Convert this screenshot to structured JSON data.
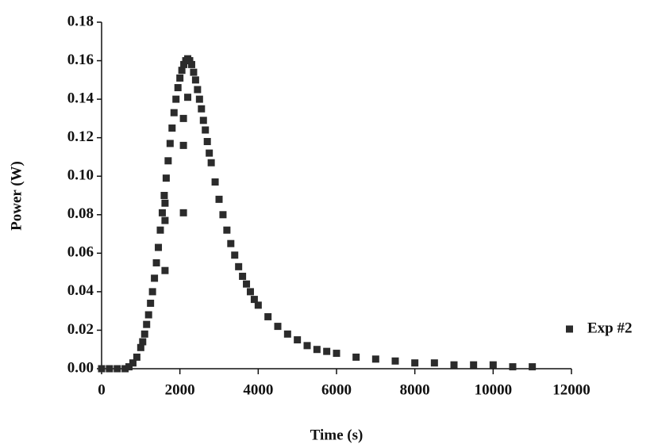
{
  "chart_data": {
    "type": "scatter",
    "x_label": "Time (s)",
    "y_label": "Power (W)",
    "xlim": [
      0,
      12000
    ],
    "xticks": [
      0,
      2000,
      4000,
      6000,
      8000,
      10000,
      12000
    ],
    "ylim": [
      0,
      0.18
    ],
    "yticks": [
      {
        "value": 0,
        "label": "0.00"
      },
      0.02,
      0.04,
      0.06,
      0.08,
      {
        "value": 0.1,
        "label": "0.10"
      },
      0.12,
      0.14,
      0.16,
      0.18
    ],
    "legend": "right",
    "series": [
      {
        "name": "Exp #2",
        "color": "#2b2b2b",
        "x": [
          0,
          200,
          400,
          600,
          700,
          800,
          900,
          1000,
          1050,
          1100,
          1150,
          1200,
          1250,
          1300,
          1350,
          1400,
          1450,
          1500,
          1550,
          1600,
          1650,
          1700,
          1750,
          1800,
          1850,
          1900,
          1950,
          2000,
          2050,
          2100,
          2150,
          2200,
          2250,
          2300,
          2350,
          2400,
          2450,
          2500,
          2550,
          2600,
          2650,
          2700,
          2750,
          2800,
          2900,
          3000,
          3100,
          3200,
          3300,
          3400,
          3500,
          3600,
          3700,
          3800,
          3900,
          4000,
          4250,
          4500,
          4750,
          5000,
          5250,
          5500,
          5750,
          6000,
          6500,
          7000,
          7500,
          8000,
          8500,
          9000,
          9500,
          10000,
          10500,
          11000,
          1620,
          1620,
          1620,
          2090,
          2090,
          2090,
          2200
        ],
        "values": [
          0,
          0,
          0,
          0,
          0.001,
          0.003,
          0.006,
          0.011,
          0.014,
          0.018,
          0.023,
          0.028,
          0.034,
          0.04,
          0.047,
          0.055,
          0.063,
          0.072,
          0.081,
          0.09,
          0.099,
          0.108,
          0.117,
          0.125,
          0.133,
          0.14,
          0.146,
          0.151,
          0.155,
          0.158,
          0.16,
          0.161,
          0.16,
          0.158,
          0.154,
          0.15,
          0.145,
          0.14,
          0.135,
          0.129,
          0.124,
          0.118,
          0.112,
          0.107,
          0.097,
          0.088,
          0.08,
          0.072,
          0.065,
          0.059,
          0.053,
          0.048,
          0.044,
          0.04,
          0.036,
          0.033,
          0.027,
          0.022,
          0.018,
          0.015,
          0.012,
          0.01,
          0.009,
          0.008,
          0.006,
          0.005,
          0.004,
          0.003,
          0.003,
          0.002,
          0.002,
          0.002,
          0.001,
          0.001,
          0.051,
          0.077,
          0.086,
          0.081,
          0.116,
          0.13,
          0.141
        ]
      }
    ]
  }
}
